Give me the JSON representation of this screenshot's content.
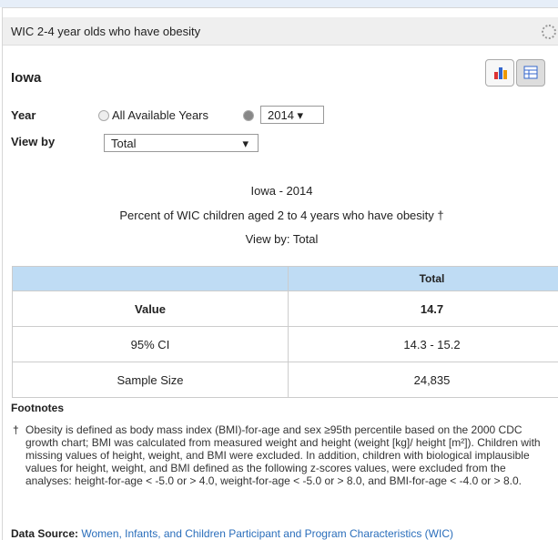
{
  "header": {
    "title": "WIC 2-4 year olds who have obesity",
    "location": "Iowa"
  },
  "controls": {
    "year_label": "Year",
    "all_years_option": "All Available Years",
    "selected_year": "2014",
    "view_by_label": "View by",
    "view_by_value": "Total"
  },
  "table_title": [
    "Iowa - 2014",
    "Percent of WIC children aged 2 to 4 years who have obesity †",
    "View by: Total"
  ],
  "table": {
    "header": "Total",
    "rows": [
      [
        "Value",
        "14.7"
      ],
      [
        "95% CI",
        "14.3 - 15.2"
      ],
      [
        "Sample Size",
        "24,835"
      ]
    ]
  },
  "footnotes": {
    "heading": "Footnotes",
    "symbol": "†",
    "text": "Obesity is defined as body mass index (BMI)-for-age and sex ≥95th percentile based on the 2000 CDC growth chart; BMI was calculated from measured weight and height (weight [kg]/ height [m²]). Children with missing values of height, weight, and BMI were excluded. In addition, children with biological implausible values for height, weight, and BMI defined as the following z-scores values, were excluded from the analyses: height-for-age < -5.0 or > 4.0, weight-for-age < -5.0 or > 8.0, and BMI-for-age < -4.0 or > 8.0."
  },
  "data_source": {
    "label": "Data Source:",
    "text": "Women, Infants, and Children Participant and Program Characteristics (WIC)"
  }
}
